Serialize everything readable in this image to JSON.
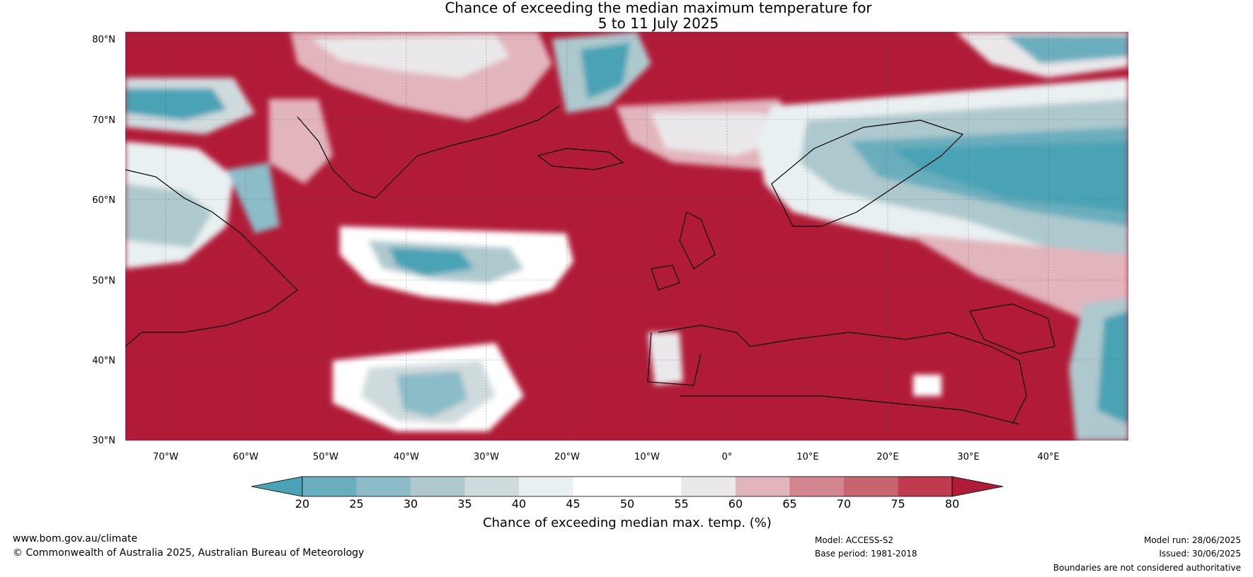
{
  "title": {
    "line1": "Chance of exceeding the median maximum temperature for",
    "line2": "5 to 11 July 2025"
  },
  "axes": {
    "lat_labels": [
      "80°N",
      "70°N",
      "60°N",
      "50°N",
      "40°N",
      "30°N"
    ],
    "lon_labels": [
      "70°W",
      "60°W",
      "50°W",
      "40°W",
      "30°W",
      "20°W",
      "10°W",
      "0°",
      "10°E",
      "20°E",
      "30°E",
      "40°E"
    ],
    "lat_range": [
      30,
      81
    ],
    "lon_range": [
      -75,
      50
    ]
  },
  "colorbar": {
    "label": "Chance of exceeding median max. temp. (%)",
    "ticks": [
      "20",
      "25",
      "30",
      "35",
      "40",
      "45",
      "50",
      "55",
      "60",
      "65",
      "70",
      "75",
      "80"
    ],
    "colors": [
      "#4aa3b5",
      "#6aaebd",
      "#8bbcc7",
      "#adc9cd",
      "#cfdadd",
      "#e9f0f1",
      "#ffffff",
      "#ffffff",
      "#eae8ea",
      "#e2b4bc",
      "#d4848f",
      "#c86470",
      "#be3c4e",
      "#b11b37"
    ]
  },
  "footer": {
    "url": "www.bom.gov.au/climate",
    "copyright": "© Commonwealth of Australia 2025, Australian Bureau of Meteorology",
    "model": "Model: ACCESS-S2",
    "base_period": "Base period: 1981-2018",
    "model_run": "Model run: 28/06/2025",
    "issued": "Issued: 30/06/2025",
    "disclaimer": "Boundaries are not considered authoritative"
  }
}
